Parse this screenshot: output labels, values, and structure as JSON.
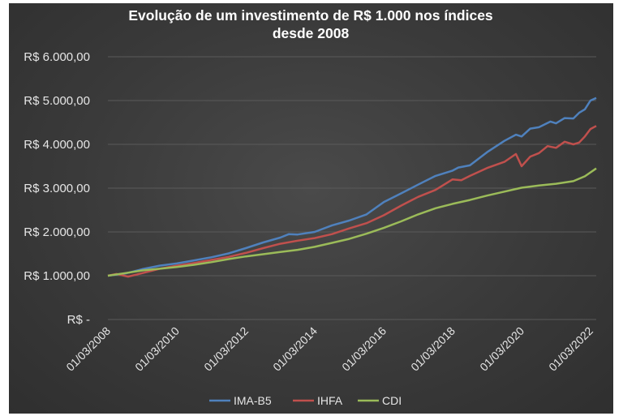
{
  "chart_data": {
    "type": "line",
    "title_lines": [
      "Evolução de um investimento de R$ 1.000 nos índices",
      "desde 2008"
    ],
    "xlabel": "",
    "ylabel": "",
    "ylim": [
      0,
      6000
    ],
    "y_ticks": [
      {
        "value": 0,
        "label": "R$ -"
      },
      {
        "value": 1000,
        "label": "R$ 1.000,00"
      },
      {
        "value": 2000,
        "label": "R$ 2.000,00"
      },
      {
        "value": 3000,
        "label": "R$ 3.000,00"
      },
      {
        "value": 4000,
        "label": "R$ 4.000,00"
      },
      {
        "value": 5000,
        "label": "R$ 5.000,00"
      },
      {
        "value": 6000,
        "label": "R$ 6.000,00"
      }
    ],
    "xlim": [
      "2008-03-01",
      "2022-05-01"
    ],
    "x_ticks": [
      {
        "date": "2008-03-01",
        "label": "01/03/2008"
      },
      {
        "date": "2010-03-01",
        "label": "01/03/2010"
      },
      {
        "date": "2012-03-01",
        "label": "01/03/2012"
      },
      {
        "date": "2014-03-01",
        "label": "01/03/2014"
      },
      {
        "date": "2016-03-01",
        "label": "01/03/2016"
      },
      {
        "date": "2018-03-01",
        "label": "01/03/2018"
      },
      {
        "date": "2020-03-01",
        "label": "01/03/2020"
      },
      {
        "date": "2022-03-01",
        "label": "01/03/2022"
      }
    ],
    "grid": true,
    "legend_position": "bottom",
    "series": [
      {
        "name": "IMA-B5",
        "color": "#4f81bd",
        "points": [
          [
            "2008-03-01",
            1000
          ],
          [
            "2008-09-01",
            1050
          ],
          [
            "2009-03-01",
            1150
          ],
          [
            "2009-09-01",
            1230
          ],
          [
            "2010-03-01",
            1280
          ],
          [
            "2010-09-01",
            1350
          ],
          [
            "2011-03-01",
            1420
          ],
          [
            "2011-09-01",
            1510
          ],
          [
            "2012-03-01",
            1630
          ],
          [
            "2012-09-01",
            1760
          ],
          [
            "2013-03-01",
            1870
          ],
          [
            "2013-06-01",
            1950
          ],
          [
            "2013-09-01",
            1940
          ],
          [
            "2014-03-01",
            2000
          ],
          [
            "2014-09-01",
            2150
          ],
          [
            "2015-03-01",
            2260
          ],
          [
            "2015-09-01",
            2400
          ],
          [
            "2016-03-01",
            2680
          ],
          [
            "2016-09-01",
            2880
          ],
          [
            "2017-03-01",
            3080
          ],
          [
            "2017-09-01",
            3280
          ],
          [
            "2018-03-01",
            3400
          ],
          [
            "2018-05-01",
            3470
          ],
          [
            "2018-09-01",
            3520
          ],
          [
            "2019-03-01",
            3820
          ],
          [
            "2019-09-01",
            4080
          ],
          [
            "2020-01-01",
            4220
          ],
          [
            "2020-03-01",
            4180
          ],
          [
            "2020-06-01",
            4360
          ],
          [
            "2020-09-01",
            4390
          ],
          [
            "2021-01-01",
            4520
          ],
          [
            "2021-03-01",
            4480
          ],
          [
            "2021-06-01",
            4600
          ],
          [
            "2021-09-01",
            4590
          ],
          [
            "2021-11-01",
            4720
          ],
          [
            "2022-01-01",
            4800
          ],
          [
            "2022-03-01",
            5000
          ],
          [
            "2022-05-01",
            5060
          ]
        ]
      },
      {
        "name": "IHFA",
        "color": "#c0504d",
        "points": [
          [
            "2008-03-01",
            1000
          ],
          [
            "2008-06-01",
            1040
          ],
          [
            "2008-10-01",
            980
          ],
          [
            "2009-03-01",
            1060
          ],
          [
            "2009-09-01",
            1160
          ],
          [
            "2010-03-01",
            1230
          ],
          [
            "2010-09-01",
            1290
          ],
          [
            "2011-03-01",
            1360
          ],
          [
            "2011-09-01",
            1430
          ],
          [
            "2012-03-01",
            1520
          ],
          [
            "2012-09-01",
            1630
          ],
          [
            "2013-03-01",
            1730
          ],
          [
            "2013-09-01",
            1800
          ],
          [
            "2014-03-01",
            1860
          ],
          [
            "2014-09-01",
            1950
          ],
          [
            "2015-03-01",
            2080
          ],
          [
            "2015-09-01",
            2200
          ],
          [
            "2016-03-01",
            2380
          ],
          [
            "2016-09-01",
            2600
          ],
          [
            "2017-03-01",
            2800
          ],
          [
            "2017-09-01",
            2960
          ],
          [
            "2018-03-01",
            3200
          ],
          [
            "2018-06-01",
            3180
          ],
          [
            "2018-09-01",
            3280
          ],
          [
            "2019-03-01",
            3460
          ],
          [
            "2019-09-01",
            3600
          ],
          [
            "2020-01-01",
            3780
          ],
          [
            "2020-03-01",
            3500
          ],
          [
            "2020-06-01",
            3720
          ],
          [
            "2020-09-01",
            3800
          ],
          [
            "2020-12-01",
            3960
          ],
          [
            "2021-03-01",
            3920
          ],
          [
            "2021-06-01",
            4060
          ],
          [
            "2021-09-01",
            4000
          ],
          [
            "2021-11-01",
            4040
          ],
          [
            "2022-01-01",
            4180
          ],
          [
            "2022-03-01",
            4350
          ],
          [
            "2022-05-01",
            4420
          ]
        ]
      },
      {
        "name": "CDI",
        "color": "#9bbb59",
        "points": [
          [
            "2008-03-01",
            1000
          ],
          [
            "2008-09-01",
            1060
          ],
          [
            "2009-03-01",
            1120
          ],
          [
            "2009-09-01",
            1160
          ],
          [
            "2010-03-01",
            1200
          ],
          [
            "2010-09-01",
            1250
          ],
          [
            "2011-03-01",
            1310
          ],
          [
            "2011-09-01",
            1380
          ],
          [
            "2012-03-01",
            1440
          ],
          [
            "2012-09-01",
            1490
          ],
          [
            "2013-03-01",
            1540
          ],
          [
            "2013-09-01",
            1590
          ],
          [
            "2014-03-01",
            1660
          ],
          [
            "2014-09-01",
            1750
          ],
          [
            "2015-03-01",
            1840
          ],
          [
            "2015-09-01",
            1960
          ],
          [
            "2016-03-01",
            2090
          ],
          [
            "2016-09-01",
            2240
          ],
          [
            "2017-03-01",
            2400
          ],
          [
            "2017-09-01",
            2540
          ],
          [
            "2018-03-01",
            2640
          ],
          [
            "2018-09-01",
            2730
          ],
          [
            "2019-03-01",
            2830
          ],
          [
            "2019-09-01",
            2920
          ],
          [
            "2020-03-01",
            3010
          ],
          [
            "2020-09-01",
            3060
          ],
          [
            "2021-03-01",
            3100
          ],
          [
            "2021-09-01",
            3160
          ],
          [
            "2022-01-01",
            3270
          ],
          [
            "2022-05-01",
            3450
          ]
        ]
      }
    ]
  }
}
